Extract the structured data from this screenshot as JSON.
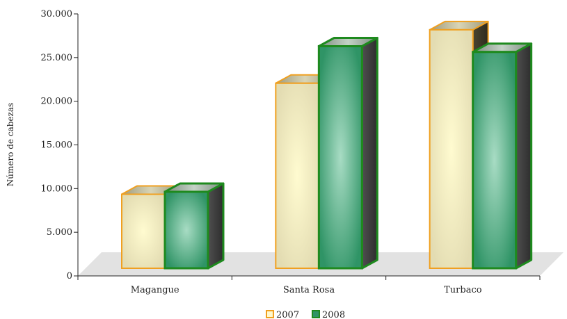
{
  "chart_data": {
    "type": "bar",
    "style": "3d-column",
    "categories": [
      "Magangue",
      "Santa Rosa",
      "Turbaco"
    ],
    "series": [
      {
        "name": "2007",
        "values": [
          9000,
          22500,
          29000
        ],
        "color": "#f0a020",
        "fill": "#f4eec0"
      },
      {
        "name": "2008",
        "values": [
          9300,
          27000,
          26300
        ],
        "color": "#1e8a1e",
        "fill": "#3f9f6f"
      }
    ],
    "ylabel": "Número de cabezas",
    "xlabel": "",
    "ylim": [
      0,
      30000
    ],
    "yticks": [
      "0",
      "5.000",
      "10.000",
      "15.000",
      "20.000",
      "25.000",
      "30.000"
    ],
    "grid": false,
    "legend": "bottom"
  }
}
